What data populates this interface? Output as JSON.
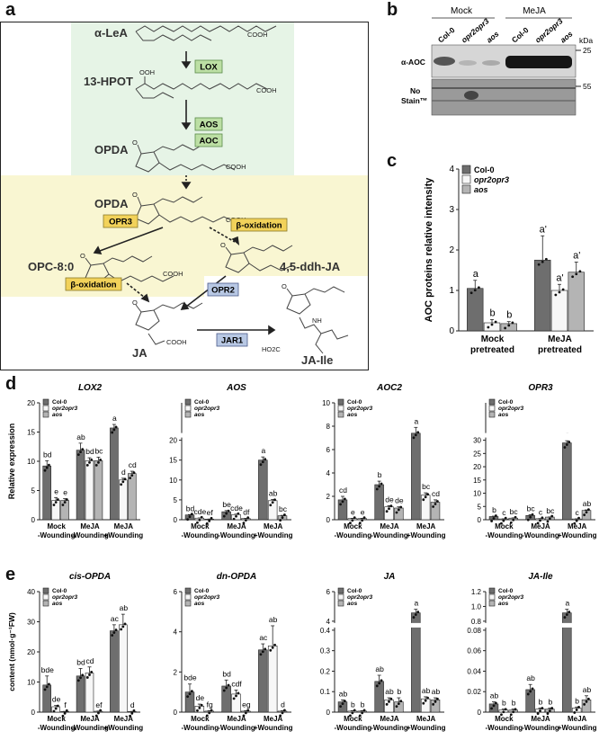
{
  "panels": {
    "a": "a",
    "b": "b",
    "c": "c",
    "d": "d",
    "e": "e"
  },
  "pathway": {
    "compounds": {
      "alpha_lea": "α-LeA",
      "hpot": "13-HPOT",
      "opda1": "OPDA",
      "opda2": "OPDA",
      "opc": "OPC-8:0",
      "ddh": "4,5-ddh-JA",
      "ja": "JA",
      "jaile": "JA-Ile"
    },
    "enzymes": {
      "lox": "LOX",
      "aos": "AOS",
      "aoc": "AOC",
      "opr3": "OPR3",
      "beta1": "β-oxidation",
      "beta2": "β-oxidation",
      "opr2": "OPR2",
      "jar1": "JAR1"
    },
    "chem": {
      "cooh": "COOH",
      "ooh": "OOH",
      "nh": "NH",
      "ho2c": "HO2C",
      "o": "O"
    },
    "colors": {
      "green": "#e6f4e6",
      "yellow": "#f9f6d2",
      "blue": "#eef1f8",
      "enzyme_green": "#bcdfa4",
      "enzyme_yellow": "#f2d25a",
      "enzyme_blue": "#b8c8e4"
    }
  },
  "blot": {
    "groups": [
      "Mock",
      "MeJA"
    ],
    "lanes": [
      "Col-0",
      "opr2opr3",
      "aos",
      "Col-0",
      "opr2opr3",
      "aos"
    ],
    "row1": "α-AOC",
    "row2a": "No",
    "row2b": "Stain™",
    "kda_unit": "kDa",
    "kda_25": "25",
    "kda_55": "55"
  },
  "legend": {
    "col0": "Col-0",
    "opr": "opr2opr3",
    "aos": "aos"
  },
  "genotype_colors": {
    "Col-0": "#6e6e6e",
    "opr2opr3": "#f7f7f7",
    "aos": "#b4b4b4"
  },
  "chart_data": [
    {
      "id": "c",
      "type": "bar",
      "ylabel": "AOC proteins relative intensity",
      "ylim": [
        0,
        4
      ],
      "yticks": [
        "0",
        "1",
        "2",
        "3",
        "4"
      ],
      "categories": [
        "Mock pretreated",
        "MeJA pretreated"
      ],
      "series": [
        {
          "name": "Col-0",
          "values": [
            1.05,
            1.75
          ],
          "err": [
            0.2,
            0.6
          ],
          "letters": [
            "a",
            "a'"
          ]
        },
        {
          "name": "opr2opr3",
          "values": [
            0.2,
            1.0
          ],
          "err": [
            0.08,
            0.15
          ],
          "letters": [
            "b",
            "a'"
          ]
        },
        {
          "name": "aos",
          "values": [
            0.18,
            1.45
          ],
          "err": [
            0.05,
            0.25
          ],
          "letters": [
            "b",
            "a'"
          ]
        }
      ]
    },
    {
      "id": "LOX2",
      "title": "LOX2",
      "type": "bar",
      "ylabel": "Relative expression",
      "ylim": [
        0,
        20
      ],
      "yticks": [
        "0",
        "5",
        "10",
        "15",
        "20"
      ],
      "categories": [
        "Mock -Wounding",
        "MeJA -Wounding",
        "MeJA +Wounding"
      ],
      "series": [
        {
          "name": "Col-0",
          "values": [
            9.2,
            11.9,
            15.7
          ],
          "err": [
            0.9,
            1.2,
            0.6
          ],
          "letters": [
            "bd",
            "ab",
            "a"
          ]
        },
        {
          "name": "opr2opr3",
          "values": [
            3.3,
            10.1,
            6.8
          ],
          "err": [
            0.5,
            0.5,
            0.3
          ],
          "letters": [
            "e",
            "bd",
            "d"
          ]
        },
        {
          "name": "aos",
          "values": [
            3.3,
            10.1,
            7.9
          ],
          "err": [
            0.3,
            0.6,
            0.4
          ],
          "letters": [
            "e",
            "bc",
            "cd"
          ]
        }
      ]
    },
    {
      "id": "AOS",
      "title": "AOS",
      "type": "bar",
      "broken": true,
      "ylim": [
        0,
        20
      ],
      "yticks": [
        "0",
        "5",
        "10",
        "15",
        "20"
      ],
      "categories": [
        "Mock -Wounding",
        "MeJA -Wounding",
        "MeJA +Wounding"
      ],
      "series": [
        {
          "name": "Col-0",
          "values": [
            1.2,
            2.0,
            15.0
          ],
          "err": [
            0.1,
            0.3,
            0.8
          ],
          "letters": [
            "bd",
            "be",
            "a"
          ]
        },
        {
          "name": "opr2opr3",
          "values": [
            0.4,
            1.3,
            4.8
          ],
          "err": [
            0.05,
            0.1,
            0.3
          ],
          "letters": [
            "cde",
            "cde",
            "ab"
          ]
        },
        {
          "name": "aos",
          "values": [
            0.15,
            0.3,
            1.0
          ],
          "err": [
            0.03,
            0.05,
            0.1
          ],
          "letters": [
            "ef",
            "df",
            "bc"
          ]
        }
      ]
    },
    {
      "id": "AOC2",
      "title": "AOC2",
      "type": "bar",
      "ylim": [
        0,
        10
      ],
      "yticks": [
        "0",
        "2",
        "4",
        "6",
        "8",
        "10"
      ],
      "categories": [
        "Mock -Wounding",
        "MeJA -Wounding",
        "MeJA +Wounding"
      ],
      "series": [
        {
          "name": "Col-0",
          "values": [
            1.7,
            3.0,
            7.4
          ],
          "err": [
            0.3,
            0.3,
            0.5
          ],
          "letters": [
            "cd",
            "b",
            "a"
          ]
        },
        {
          "name": "opr2opr3",
          "values": [
            0.1,
            1.1,
            2.1
          ],
          "err": [
            0.02,
            0.1,
            0.2
          ],
          "letters": [
            "e",
            "de",
            "bc"
          ]
        },
        {
          "name": "aos",
          "values": [
            0.1,
            1.0,
            1.5
          ],
          "err": [
            0.02,
            0.1,
            0.2
          ],
          "letters": [
            "e",
            "de",
            "cd"
          ]
        }
      ]
    },
    {
      "id": "OPR3",
      "title": "OPR3",
      "type": "bar",
      "broken": true,
      "ylim": [
        0,
        30
      ],
      "yticks": [
        "0",
        "5",
        "10",
        "15",
        "20",
        "25",
        "30"
      ],
      "categories": [
        "Mock -Wounding",
        "MeJA -Wounding",
        "MeJA +Wounding"
      ],
      "series": [
        {
          "name": "Col-0",
          "values": [
            1.2,
            1.6,
            29.0
          ],
          "err": [
            0.15,
            0.3,
            0.8
          ],
          "letters": [
            "b",
            "bc",
            "a"
          ]
        },
        {
          "name": "opr2opr3",
          "values": [
            0.3,
            0.4,
            0.3
          ],
          "err": [
            0.05,
            0.05,
            0.05
          ],
          "letters": [
            "c",
            "c",
            "c"
          ]
        },
        {
          "name": "aos",
          "values": [
            0.6,
            1.0,
            3.5
          ],
          "err": [
            0.1,
            0.05,
            0.2
          ],
          "letters": [
            "bc",
            "bc",
            "ab"
          ]
        }
      ]
    },
    {
      "id": "cisOPDA",
      "title": "cis-OPDA",
      "type": "bar",
      "ylabel": "content (nmol·g⁻¹FW)",
      "ylim": [
        0,
        40
      ],
      "yticks": [
        "0",
        "10",
        "20",
        "30",
        "40"
      ],
      "categories": [
        "Mock -Wounding",
        "MeJA -Wounding",
        "MeJA +Wounding"
      ],
      "series": [
        {
          "name": "Col-0",
          "values": [
            9.0,
            12.0,
            27.0
          ],
          "err": [
            3.0,
            2.5,
            2.0
          ],
          "letters": [
            "bde",
            "bd",
            "ac"
          ]
        },
        {
          "name": "opr2opr3",
          "values": [
            1.8,
            13.0,
            29.0
          ],
          "err": [
            0.4,
            2.0,
            3.5
          ],
          "letters": [
            "de",
            "cd",
            "ab"
          ]
        },
        {
          "name": "aos",
          "values": [
            0.2,
            0.3,
            0.2
          ],
          "err": [
            0.05,
            0.05,
            0.05
          ],
          "letters": [
            "f",
            "ef",
            "d"
          ]
        }
      ]
    },
    {
      "id": "dnOPDA",
      "title": "dn-OPDA",
      "type": "bar",
      "ylim": [
        0,
        6
      ],
      "yticks": [
        "0",
        "2",
        "4",
        "6"
      ],
      "categories": [
        "Mock -Wounding",
        "MeJA -Wounding",
        "MeJA +Wounding"
      ],
      "series": [
        {
          "name": "Col-0",
          "values": [
            1.0,
            1.3,
            3.1
          ],
          "err": [
            0.4,
            0.3,
            0.3
          ],
          "letters": [
            "bde",
            "bd",
            "ac"
          ]
        },
        {
          "name": "opr2opr3",
          "values": [
            0.3,
            0.9,
            3.3
          ],
          "err": [
            0.1,
            0.2,
            1.0
          ],
          "letters": [
            "de",
            "cdf",
            "ab"
          ]
        },
        {
          "name": "aos",
          "values": [
            0.05,
            0.05,
            0.05
          ],
          "err": [
            0.02,
            0.02,
            0.02
          ],
          "letters": [
            "fg",
            "eg",
            "d"
          ]
        }
      ]
    },
    {
      "id": "JA",
      "title": "JA",
      "type": "bar",
      "broken": true,
      "ylim": [
        0,
        0.4
      ],
      "yticks": [
        "0",
        "0.1",
        "0.2",
        "0.3",
        "0.4"
      ],
      "upper_ticks": [
        "4",
        "6"
      ],
      "categories": [
        "Mock -Wounding",
        "MeJA -Wounding",
        "MeJA +Wounding"
      ],
      "series": [
        {
          "name": "Col-0",
          "values": [
            0.05,
            0.15,
            5.3
          ],
          "err": [
            0.01,
            0.03,
            0.4
          ],
          "letters": [
            "ab",
            "ab",
            "a"
          ]
        },
        {
          "name": "opr2opr3",
          "values": [
            0.005,
            0.06,
            0.065
          ],
          "err": [
            0.002,
            0.01,
            0.01
          ],
          "letters": [
            "b",
            "ab",
            "ab"
          ]
        },
        {
          "name": "aos",
          "values": [
            0.005,
            0.05,
            0.06
          ],
          "err": [
            0.002,
            0.02,
            0.01
          ],
          "letters": [
            "b",
            "b",
            "ab"
          ]
        }
      ]
    },
    {
      "id": "JAIle",
      "title": "JA-Ile",
      "type": "bar",
      "broken": true,
      "ylim": [
        0,
        0.08
      ],
      "yticks": [
        "0",
        "0.02",
        "0.04",
        "0.06",
        "0.08"
      ],
      "upper_ticks": [
        "0.8",
        "1.0",
        "1.2"
      ],
      "categories": [
        "Mock -Wounding",
        "MeJA -Wounding",
        "MeJA +Wounding"
      ],
      "series": [
        {
          "name": "Col-0",
          "values": [
            0.008,
            0.022,
            1.02
          ],
          "err": [
            0.002,
            0.005,
            0.01
          ],
          "letters": [
            "ab",
            "ab",
            "a"
          ]
        },
        {
          "name": "opr2opr3",
          "values": [
            0.002,
            0.003,
            0.004
          ],
          "err": [
            0.001,
            0.001,
            0.001
          ],
          "letters": [
            "b",
            "b",
            "b"
          ]
        },
        {
          "name": "aos",
          "values": [
            0.002,
            0.003,
            0.012
          ],
          "err": [
            0.001,
            0.001,
            0.004
          ],
          "letters": [
            "b",
            "b",
            "ab"
          ]
        }
      ]
    }
  ],
  "cat_labels": {
    "c": [
      [
        "Mock",
        "pretreated"
      ],
      [
        "MeJA",
        "pretreated"
      ]
    ],
    "de": [
      [
        "Mock",
        "-Wounding"
      ],
      [
        "MeJA",
        "-Wounding"
      ],
      [
        "MeJA",
        "+Wounding"
      ]
    ]
  }
}
